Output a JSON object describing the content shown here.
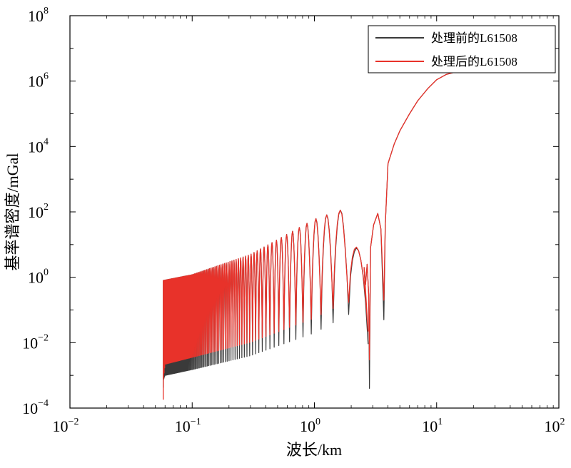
{
  "chart_data": {
    "type": "line",
    "title": "",
    "xlabel": "波长/km",
    "ylabel": "基率谱密度/mGal",
    "xscale": "log",
    "yscale": "log",
    "xlim": [
      0.01,
      100
    ],
    "ylim": [
      0.0001,
      100000000
    ],
    "grid": false,
    "legend_position": "top-right",
    "x_ticks": [
      {
        "base": "10",
        "exp": "−2"
      },
      {
        "base": "10",
        "exp": "−1"
      },
      {
        "base": "10",
        "exp": "0"
      },
      {
        "base": "10",
        "exp": "1"
      },
      {
        "base": "10",
        "exp": "2"
      }
    ],
    "y_ticks": [
      {
        "base": "10",
        "exp": "−4"
      },
      {
        "base": "10",
        "exp": "−2"
      },
      {
        "base": "10",
        "exp": "0"
      },
      {
        "base": "10",
        "exp": "2"
      },
      {
        "base": "10",
        "exp": "4"
      },
      {
        "base": "10",
        "exp": "6"
      },
      {
        "base": "10",
        "exp": "8"
      }
    ],
    "series": [
      {
        "name": "处理前的L61508",
        "color": "#3a3a3a",
        "description_points": {
          "x_range": [
            0.058,
            17
          ],
          "lower_envelope": [
            [
              0.058,
              0.0007
            ],
            [
              0.06,
              0.001
            ],
            [
              0.1,
              0.0015
            ],
            [
              0.3,
              0.004
            ],
            [
              1.0,
              0.02
            ],
            [
              2.0,
              0.08
            ],
            [
              2.8,
              0.0004
            ],
            [
              3.7,
              0.05
            ]
          ],
          "upper_envelope": [
            [
              0.058,
              0.8
            ],
            [
              0.1,
              1.2
            ],
            [
              0.3,
              5
            ],
            [
              1.0,
              60
            ],
            [
              1.7,
              120
            ],
            [
              2.6,
              2
            ],
            [
              2.8,
              0.2
            ],
            [
              3.3,
              80
            ],
            [
              4,
              3000
            ],
            [
              6,
              100000
            ],
            [
              10,
              1500000
            ],
            [
              17,
              2000000
            ]
          ]
        }
      },
      {
        "name": "处理后的L61508",
        "color": "#e8322a",
        "description_points": {
          "x_range": [
            0.058,
            17
          ],
          "lower_envelope": [
            [
              0.058,
              0.0003
            ],
            [
              0.06,
              0.0011
            ],
            [
              0.1,
              0.0018
            ],
            [
              0.3,
              0.005
            ],
            [
              1.0,
              0.025
            ],
            [
              2.0,
              0.1
            ],
            [
              2.8,
              0.003
            ],
            [
              3.7,
              0.2
            ]
          ],
          "upper_envelope": [
            [
              0.058,
              0.8
            ],
            [
              0.1,
              1.2
            ],
            [
              0.3,
              5
            ],
            [
              1.0,
              60
            ],
            [
              1.7,
              120
            ],
            [
              2.6,
              2
            ],
            [
              2.8,
              0.2
            ],
            [
              3.3,
              80
            ],
            [
              4,
              3000
            ],
            [
              6,
              100000
            ],
            [
              10,
              1500000
            ],
            [
              17,
              2000000
            ]
          ]
        }
      }
    ]
  }
}
